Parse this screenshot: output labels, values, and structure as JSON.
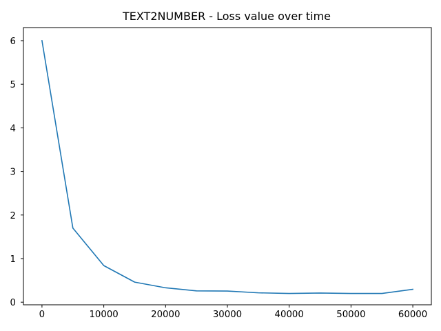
{
  "chart_data": {
    "type": "line",
    "title": "TEXT2NUMBER - Loss value over time",
    "xlabel": "",
    "ylabel": "",
    "xlim": [
      -3000,
      63000
    ],
    "ylim": [
      -0.06,
      6.3
    ],
    "xticks": [
      0,
      10000,
      20000,
      30000,
      40000,
      50000,
      60000
    ],
    "yticks": [
      0,
      1,
      2,
      3,
      4,
      5,
      6
    ],
    "grid": false,
    "legend": "none",
    "series": [
      {
        "color": "#1f77b4",
        "x": [
          0,
          5000,
          10000,
          15000,
          20000,
          25000,
          30000,
          35000,
          40000,
          45000,
          50000,
          55000,
          60000
        ],
        "y": [
          6.0,
          1.7,
          0.84,
          0.46,
          0.33,
          0.26,
          0.255,
          0.215,
          0.2,
          0.21,
          0.2,
          0.2,
          0.295
        ]
      }
    ]
  }
}
